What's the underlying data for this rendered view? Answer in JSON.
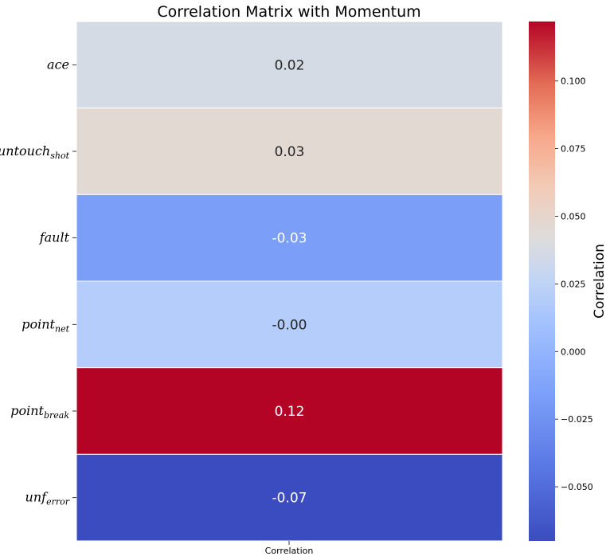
{
  "chart_data": {
    "type": "heatmap",
    "title": "Correlation Matrix with Momentum",
    "columns": [
      "Correlation"
    ],
    "rows": [
      {
        "base": "ace",
        "sub": "",
        "value": 0.02,
        "label": "0.02",
        "color": "#d5dbe5",
        "text_color": "#262626"
      },
      {
        "base": "untouch",
        "sub": "shot",
        "value": 0.03,
        "label": "0.03",
        "color": "#e3d9d3",
        "text_color": "#262626"
      },
      {
        "base": "fault",
        "sub": "",
        "value": -0.03,
        "label": "-0.03",
        "color": "#7b9ff9",
        "text_color": "#ffffff"
      },
      {
        "base": "point",
        "sub": "net",
        "value": -0.0,
        "label": "-0.00",
        "color": "#b5cdfb",
        "text_color": "#262626"
      },
      {
        "base": "point",
        "sub": "break",
        "value": 0.12,
        "label": "0.12",
        "color": "#b40426",
        "text_color": "#ffffff"
      },
      {
        "base": "unf",
        "sub": "error",
        "value": -0.07,
        "label": "-0.07",
        "color": "#3b4cc0",
        "text_color": "#ffffff"
      }
    ],
    "colorbar": {
      "label": "Correlation",
      "colormap": "coolwarm",
      "vmin": -0.07,
      "vmax": 0.122,
      "ticks": [
        {
          "value": 0.1,
          "label": "0.100"
        },
        {
          "value": 0.075,
          "label": "0.075"
        },
        {
          "value": 0.05,
          "label": "0.050"
        },
        {
          "value": 0.025,
          "label": "0.025"
        },
        {
          "value": 0.0,
          "label": "0.000"
        },
        {
          "value": -0.025,
          "label": "−0.025"
        },
        {
          "value": -0.05,
          "label": "−0.050"
        }
      ]
    }
  }
}
